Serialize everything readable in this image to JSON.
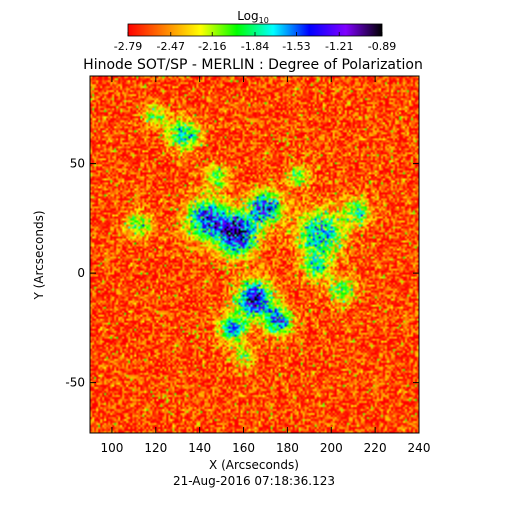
{
  "chart_data": {
    "type": "heatmap",
    "title": "Hinode SOT/SP - MERLIN : Degree of Polarization",
    "xlabel": "X (Arcseconds)",
    "ylabel": "Y (Arcseconds)",
    "footer": "21-Aug-2016 07:18:36.123",
    "xlim": [
      90,
      240
    ],
    "ylim": [
      -73,
      90
    ],
    "x_ticks": [
      100,
      120,
      140,
      160,
      180,
      200,
      220,
      240
    ],
    "y_ticks": [
      -50,
      0,
      50
    ],
    "grid": false,
    "colorbar": {
      "title_base": "Log",
      "title_sub": "10",
      "range": [
        -2.79,
        -0.89
      ],
      "ticks": [
        "-2.79",
        "-2.47",
        "-2.16",
        "-1.84",
        "-1.53",
        "-1.21",
        "-0.89"
      ],
      "colormap": [
        "#ff0000",
        "#ff8000",
        "#ffff00",
        "#00ff00",
        "#00ffff",
        "#0000ff",
        "#8000ff",
        "#000000"
      ]
    },
    "background_level": -2.65,
    "active_regions": [
      {
        "x": 157,
        "y": 18,
        "radius": 9,
        "level": -1.05
      },
      {
        "x": 143,
        "y": 25,
        "radius": 9,
        "level": -1.45
      },
      {
        "x": 170,
        "y": 30,
        "radius": 7,
        "level": -1.4
      },
      {
        "x": 165,
        "y": -12,
        "radius": 8,
        "level": -1.2
      },
      {
        "x": 176,
        "y": -22,
        "radius": 6,
        "level": -1.5
      },
      {
        "x": 155,
        "y": -25,
        "radius": 6,
        "level": -1.6
      },
      {
        "x": 195,
        "y": 18,
        "radius": 10,
        "level": -1.6
      },
      {
        "x": 212,
        "y": 28,
        "radius": 6,
        "level": -1.9
      },
      {
        "x": 193,
        "y": 3,
        "radius": 6,
        "level": -1.9
      },
      {
        "x": 205,
        "y": -8,
        "radius": 6,
        "level": -1.95
      },
      {
        "x": 133,
        "y": 63,
        "radius": 7,
        "level": -1.75
      },
      {
        "x": 120,
        "y": 72,
        "radius": 5,
        "level": -2.05
      },
      {
        "x": 112,
        "y": 22,
        "radius": 6,
        "level": -2.0
      },
      {
        "x": 148,
        "y": 44,
        "radius": 5,
        "level": -2.0
      },
      {
        "x": 185,
        "y": 44,
        "radius": 5,
        "level": -2.0
      },
      {
        "x": 160,
        "y": -38,
        "radius": 5,
        "level": -2.1
      }
    ]
  }
}
